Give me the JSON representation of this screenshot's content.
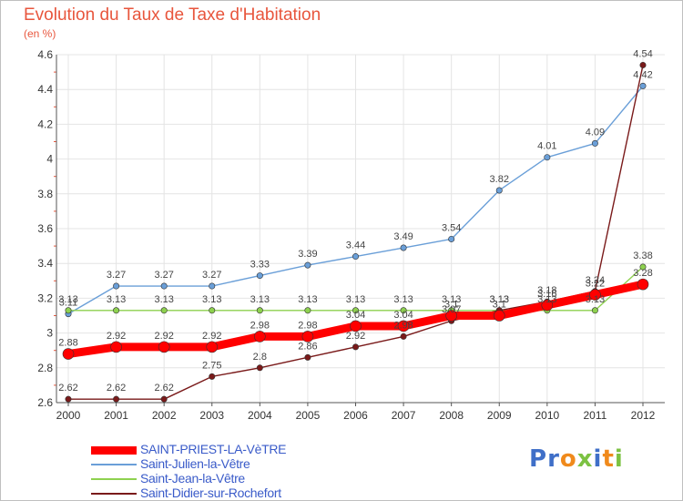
{
  "title": "Evolution du Taux de Taxe d'Habitation",
  "unit_label": "(en %)",
  "logo": {
    "text": "Proxiti",
    "letters": [
      {
        "ch": "P",
        "color": "#3f6fc8"
      },
      {
        "ch": "r",
        "color": "#3f6fc8"
      },
      {
        "ch": "o",
        "color": "#f08a1c"
      },
      {
        "ch": "x",
        "color": "#7cc242"
      },
      {
        "ch": "i",
        "color": "#3f6fc8"
      },
      {
        "ch": "t",
        "color": "#f08a1c"
      },
      {
        "ch": "i",
        "color": "#7cc242"
      }
    ]
  },
  "chart_data": {
    "type": "line",
    "title": "Evolution du Taux de Taxe d'Habitation",
    "ylabel": "(en %)",
    "xlabel": "",
    "x": [
      "2000",
      "2001",
      "2002",
      "2003",
      "2004",
      "2005",
      "2006",
      "2007",
      "2008",
      "2009",
      "2010",
      "2011",
      "2012"
    ],
    "ylim": [
      2.6,
      4.6
    ],
    "yticks": [
      2.6,
      2.8,
      3,
      3.2,
      3.4,
      3.6,
      3.8,
      4,
      4.2,
      4.4,
      4.6
    ],
    "ytick_labels": [
      "2.6",
      "2.8",
      "3",
      "3.2",
      "3.4",
      "3.6",
      "3.8",
      "4",
      "4.2",
      "4.4",
      "4.6"
    ],
    "grid": true,
    "legend_position": "bottom-left",
    "series": [
      {
        "name": "SAINT-PRIEST-LA-VèTRE",
        "color": "#ff0000",
        "width": 9,
        "marker_radius": 6,
        "values": [
          2.88,
          2.92,
          2.92,
          2.92,
          2.98,
          2.98,
          3.04,
          3.04,
          3.1,
          3.1,
          3.16,
          3.22,
          3.28
        ],
        "labels": [
          "2.88",
          "2.92",
          "2.92",
          "2.92",
          "2.98",
          "2.98",
          "3.04",
          "3.04",
          "3.1",
          "3.1",
          "3.16",
          "3.22",
          "3.28"
        ]
      },
      {
        "name": "Saint-Julien-la-Vêtre",
        "color": "#6a9fd8",
        "width": 1.4,
        "marker_radius": 3.2,
        "values": [
          3.11,
          3.27,
          3.27,
          3.27,
          3.33,
          3.39,
          3.44,
          3.49,
          3.54,
          3.82,
          4.01,
          4.09,
          4.42
        ],
        "labels": [
          "3.11",
          "3.27",
          "3.27",
          "3.27",
          "3.33",
          "3.39",
          "3.44",
          "3.49",
          "3.54",
          "3.82",
          "4.01",
          "4.09",
          "4.42"
        ]
      },
      {
        "name": "Saint-Jean-la-Vêtre",
        "color": "#8ed14f",
        "width": 1.4,
        "marker_radius": 3.2,
        "values": [
          3.13,
          3.13,
          3.13,
          3.13,
          3.13,
          3.13,
          3.13,
          3.13,
          3.13,
          3.13,
          3.13,
          3.13,
          3.38
        ],
        "labels": [
          "3.13",
          "3.13",
          "3.13",
          "3.13",
          "3.13",
          "3.13",
          "3.13",
          "3.13",
          "3.13",
          "3.13",
          "3.13",
          "3.13",
          "3.38"
        ]
      },
      {
        "name": "Saint-Didier-sur-Rochefort",
        "color": "#7a1a1a",
        "width": 1.4,
        "marker_radius": 3.2,
        "values": [
          2.62,
          2.62,
          2.62,
          2.75,
          2.8,
          2.86,
          2.92,
          2.98,
          3.07,
          3.13,
          3.18,
          3.24,
          4.54
        ],
        "labels": [
          "2.62",
          "2.62",
          "2.62",
          "2.75",
          "2.8",
          "2.86",
          "2.92",
          "2.98",
          "3.07",
          "3.13",
          "3.18",
          "3.24",
          "4.54"
        ]
      }
    ]
  }
}
